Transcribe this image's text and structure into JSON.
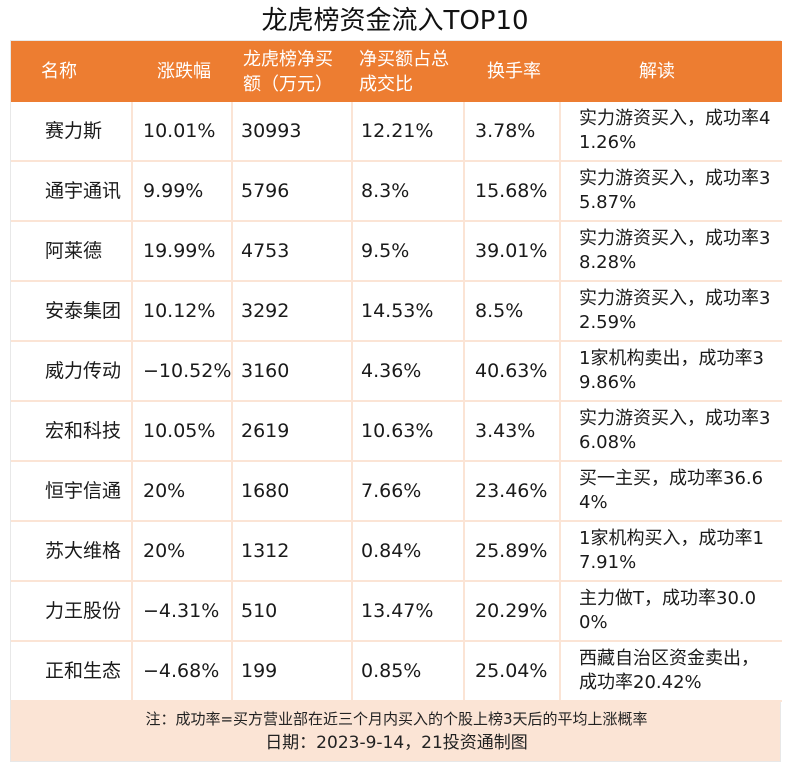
{
  "title": "龙虎榜资金流入TOP10",
  "headers": [
    "名称",
    "涨跌幅",
    "龙虎榜净买额（万元）",
    "净买额占总成交比",
    "换手率",
    "解读"
  ],
  "rows": [
    [
      "赛力斯",
      "10.01%",
      "30993",
      "12.21%",
      "3.78%",
      "实力游资买入，成功率41.26%"
    ],
    [
      "通宇通讯",
      "9.99%",
      "5796",
      "8.3%",
      "15.68%",
      "实力游资买入，成功率35.87%"
    ],
    [
      "阿莱德",
      "19.99%",
      "4753",
      "9.5%",
      "39.01%",
      "实力游资买入，成功率38.28%"
    ],
    [
      "安泰集团",
      "10.12%",
      "3292",
      "14.53%",
      "8.5%",
      "实力游资买入，成功率32.59%"
    ],
    [
      "威力传动",
      "−10.52%",
      "3160",
      "4.36%",
      "40.63%",
      "1家机构卖出，成功率39.86%"
    ],
    [
      "宏和科技",
      "10.05%",
      "2619",
      "10.63%",
      "3.43%",
      "实力游资买入，成功率36.08%"
    ],
    [
      "恒宇信通",
      "20%",
      "1680",
      "7.66%",
      "23.46%",
      "买一主买，成功率36.64%"
    ],
    [
      "苏大维格",
      "20%",
      "1312",
      "0.84%",
      "25.89%",
      "1家机构买入，成功率17.91%"
    ],
    [
      "力王股份",
      "−4.31%",
      "510",
      "13.47%",
      "20.29%",
      "主力做T，成功率30.00%"
    ],
    [
      "正和生态",
      "−4.68%",
      "199",
      "0.85%",
      "25.04%",
      "西藏自治区资金卖出，成功率20.42%"
    ]
  ],
  "footnote": "注：成功率=买方营业部在近三个月内买入的个股上榜3天后的平均上涨概率",
  "date_line": "日期：2023-9-14，21投资通制图",
  "colors": {
    "header_bg": "#ed7d31",
    "frame_bg": "#fbe4d5",
    "cell_bg": "#ffffff"
  }
}
